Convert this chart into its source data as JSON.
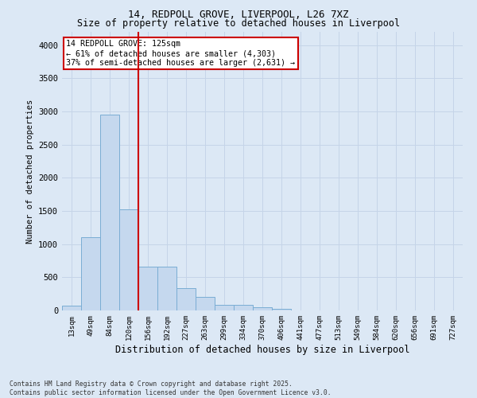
{
  "title_line1": "14, REDPOLL GROVE, LIVERPOOL, L26 7XZ",
  "title_line2": "Size of property relative to detached houses in Liverpool",
  "xlabel": "Distribution of detached houses by size in Liverpool",
  "ylabel": "Number of detached properties",
  "categories": [
    "13sqm",
    "49sqm",
    "84sqm",
    "120sqm",
    "156sqm",
    "192sqm",
    "227sqm",
    "263sqm",
    "299sqm",
    "334sqm",
    "370sqm",
    "406sqm",
    "441sqm",
    "477sqm",
    "513sqm",
    "549sqm",
    "584sqm",
    "620sqm",
    "656sqm",
    "691sqm",
    "727sqm"
  ],
  "values": [
    70,
    1110,
    2950,
    1530,
    660,
    660,
    340,
    200,
    90,
    90,
    50,
    30,
    0,
    0,
    0,
    0,
    0,
    0,
    0,
    0,
    0
  ],
  "bar_color": "#c5d8ee",
  "bar_edge_color": "#7aadd4",
  "redline_x": 3.5,
  "annotation_text": "14 REDPOLL GROVE: 125sqm\n← 61% of detached houses are smaller (4,303)\n37% of semi-detached houses are larger (2,631) →",
  "annotation_box_color": "#ffffff",
  "annotation_edge_color": "#cc0000",
  "redline_color": "#cc0000",
  "ylim": [
    0,
    4200
  ],
  "yticks": [
    0,
    500,
    1000,
    1500,
    2000,
    2500,
    3000,
    3500,
    4000
  ],
  "grid_color": "#c5d4e8",
  "background_color": "#dce8f5",
  "footer_line1": "Contains HM Land Registry data © Crown copyright and database right 2025.",
  "footer_line2": "Contains public sector information licensed under the Open Government Licence v3.0."
}
